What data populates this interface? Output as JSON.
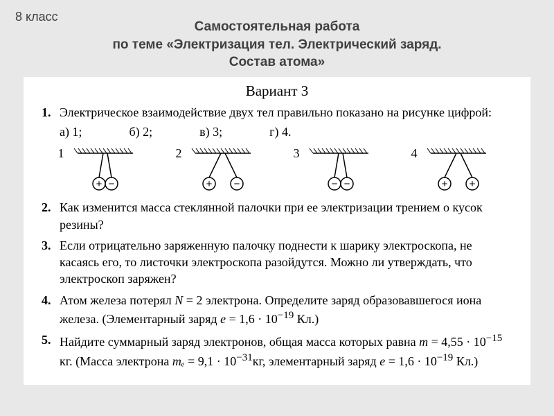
{
  "grade": "8 класс",
  "header": {
    "line1": "Самостоятельная работа",
    "line2": "по теме «Электризация тел. Электрический заряд.",
    "line3": "Состав атома»"
  },
  "variant": "Вариант 3",
  "q1": {
    "num": "1.",
    "text": "Электрическое взаимодействие двух тел правильно показано на рисунке цифрой:",
    "options": {
      "a": "а) 1;",
      "b": "б) 2;",
      "c": "в) 3;",
      "d": "г) 4."
    },
    "diagrams": [
      {
        "num": "1",
        "left": "+",
        "right": "−",
        "spread": false
      },
      {
        "num": "2",
        "left": "+",
        "right": "−",
        "spread": true
      },
      {
        "num": "3",
        "left": "−",
        "right": "−",
        "spread": false
      },
      {
        "num": "4",
        "left": "+",
        "right": "+",
        "spread": true
      }
    ]
  },
  "q2": {
    "num": "2.",
    "text": "Как изменится масса стеклянной палочки при ее электризации трением о кусок резины?"
  },
  "q3": {
    "num": "3.",
    "text": "Если отрицательно заряженную палочку поднести к шарику электроскопа, не касаясь его, то листочки электроскопа разойдутся. Можно ли утверждать, что электроскоп заряжен?"
  },
  "q4": {
    "num": "4.",
    "prefix": "Атом железа потерял ",
    "var1": "N",
    "mid1": " = 2 электрона. Определите заряд образовавшегося иона железа. (Элементарный заряд ",
    "var2": "e",
    "mid2": " = 1,6 · 10",
    "exp": "−19",
    "suffix": " Кл.)"
  },
  "q5": {
    "num": "5.",
    "prefix": "Найдите суммарный заряд электронов, общая масса которых равна ",
    "var1": "m",
    "mid1": " = 4,55 · 10",
    "exp1": "−15",
    "mid2": " кг. (Масса электрона ",
    "var2": "mₑ",
    "mid3": " = 9,1 · 10",
    "exp2": "−31",
    "mid4": "кг, элементарный заряд ",
    "var3": "e",
    "mid5": " = 1,6 · 10",
    "exp3": "−19",
    "suffix": " Кл.)"
  },
  "svg": {
    "hatch_stroke": "#000000",
    "line_stroke": "#000000",
    "circle_fill": "#ffffff",
    "circle_stroke": "#000000"
  }
}
